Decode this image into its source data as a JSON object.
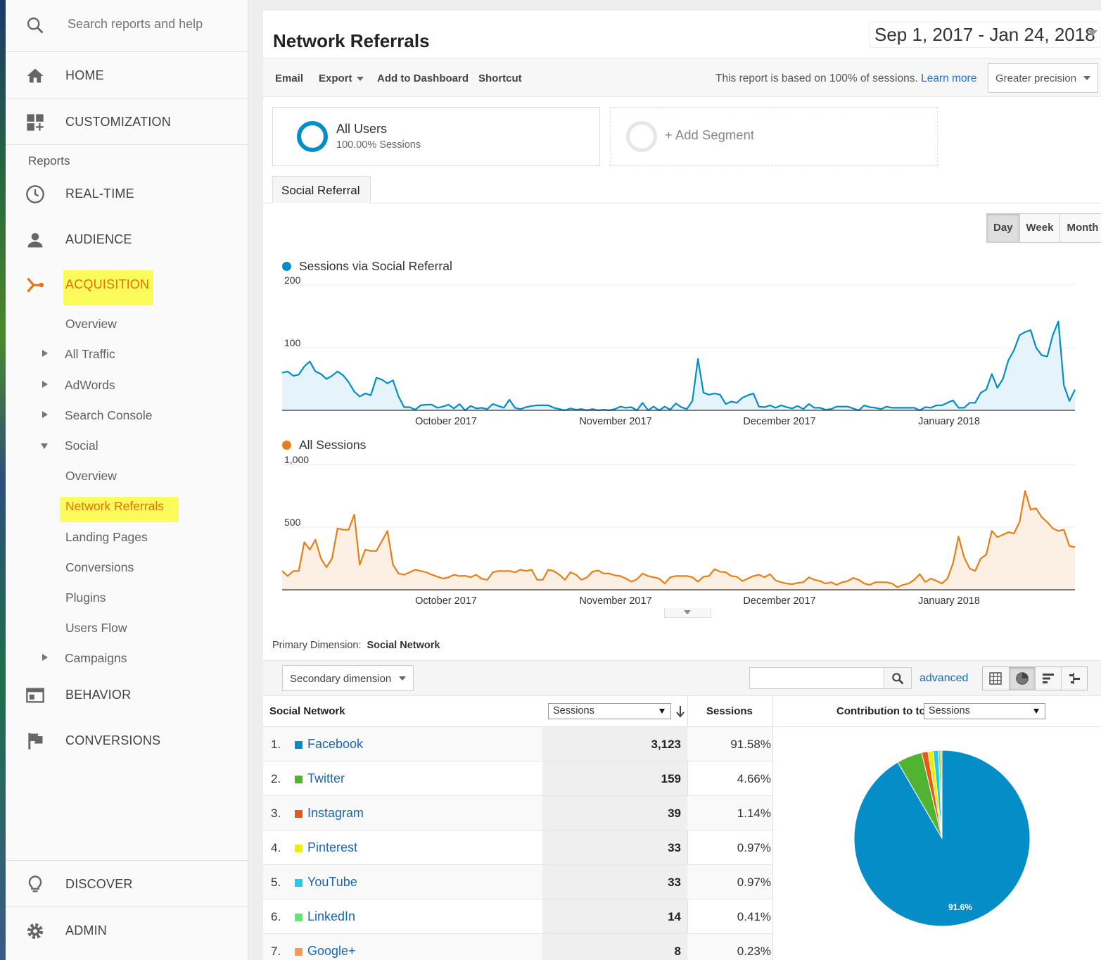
{
  "sidebar": {
    "search_placeholder": "Search reports and help",
    "top_items": [
      {
        "label": "HOME",
        "icon": "home-icon"
      },
      {
        "label": "CUSTOMIZATION",
        "icon": "dashboard-icon"
      }
    ],
    "reports_label": "Reports",
    "sections": [
      {
        "label": "REAL-TIME",
        "icon": "clock-icon"
      },
      {
        "label": "AUDIENCE",
        "icon": "person-icon"
      },
      {
        "label": "ACQUISITION",
        "icon": "acquisition-icon"
      }
    ],
    "acq_items": [
      "Overview",
      "All Traffic",
      "AdWords",
      "Search Console",
      "Social"
    ],
    "social_items": [
      "Overview",
      "Network Referrals",
      "Landing Pages",
      "Conversions",
      "Plugins",
      "Users Flow"
    ],
    "campaigns": "Campaigns",
    "behavior": "BEHAVIOR",
    "conversions": "CONVERSIONS",
    "discover": "DISCOVER",
    "admin": "ADMIN"
  },
  "report": {
    "title": "Network Referrals",
    "date_range": "Sep 1, 2017 - Jan 24, 2018"
  },
  "toolbar": {
    "email": "Email",
    "export": "Export",
    "add_dashboard": "Add to Dashboard",
    "shortcut": "Shortcut",
    "sampling_text": "This report is based on 100% of sessions.",
    "learn_more": "Learn more",
    "precision": "Greater precision"
  },
  "segments": {
    "all_users": "All Users",
    "all_users_sub": "100.00% Sessions",
    "add_segment": "+ Add Segment"
  },
  "tab": "Social Referral",
  "granularity": [
    "Day",
    "Week",
    "Month"
  ],
  "chart_data": [
    {
      "type": "area",
      "series": [
        {
          "name": "Sessions via Social Referral",
          "color": "#058dc7",
          "values": [
            60,
            62,
            55,
            57,
            70,
            78,
            62,
            58,
            50,
            55,
            62,
            56,
            45,
            30,
            22,
            27,
            24,
            52,
            49,
            43,
            48,
            22,
            5,
            5,
            1,
            8,
            9,
            9,
            4,
            6,
            9,
            3,
            10,
            0,
            7,
            3,
            4,
            2,
            10,
            7,
            4,
            17,
            4,
            2,
            5,
            7,
            8,
            8,
            8,
            4,
            2,
            0,
            3,
            1,
            2,
            0,
            2,
            0,
            1,
            0,
            2,
            6,
            4,
            5,
            0,
            12,
            0,
            6,
            0,
            6,
            1,
            11,
            5,
            2,
            15,
            82,
            28,
            25,
            27,
            25,
            10,
            14,
            12,
            20,
            24,
            27,
            6,
            5,
            8,
            4,
            8,
            5,
            3,
            7,
            2,
            10,
            4,
            4,
            1,
            2,
            6,
            6,
            6,
            3,
            0,
            8,
            5,
            4,
            2,
            6,
            4,
            4,
            4,
            4,
            4,
            0,
            5,
            4,
            8,
            8,
            12,
            16,
            4,
            4,
            12,
            12,
            28,
            33,
            58,
            36,
            50,
            80,
            96,
            120,
            125,
            128,
            100,
            88,
            86,
            120,
            142,
            40,
            15,
            33
          ]
        }
      ],
      "x_ticks": [
        "October 2017",
        "November 2017",
        "December 2017",
        "January 2018"
      ],
      "y_ticks": [
        "100",
        "200"
      ],
      "ylim": [
        0,
        200
      ]
    },
    {
      "type": "area",
      "series": [
        {
          "name": "All Sessions",
          "color": "#e67f17",
          "values": [
            150,
            110,
            150,
            150,
            380,
            320,
            400,
            250,
            180,
            250,
            490,
            480,
            480,
            600,
            200,
            320,
            310,
            310,
            390,
            470,
            200,
            130,
            120,
            140,
            160,
            150,
            140,
            120,
            105,
            90,
            100,
            120,
            110,
            112,
            100,
            120,
            88,
            80,
            140,
            150,
            150,
            150,
            140,
            160,
            150,
            160,
            80,
            80,
            160,
            150,
            120,
            80,
            140,
            120,
            80,
            100,
            145,
            155,
            130,
            130,
            115,
            110,
            90,
            65,
            85,
            130,
            110,
            100,
            90,
            50,
            100,
            110,
            110,
            110,
            100,
            65,
            105,
            110,
            165,
            145,
            140,
            110,
            105,
            70,
            90,
            110,
            120,
            100,
            125,
            75,
            60,
            50,
            45,
            55,
            60,
            100,
            80,
            70,
            50,
            60,
            40,
            60,
            70,
            95,
            80,
            50,
            40,
            60,
            60,
            60,
            50,
            20,
            40,
            50,
            80,
            125,
            62,
            90,
            72,
            50,
            90,
            210,
            425,
            260,
            170,
            150,
            250,
            280,
            470,
            420,
            440,
            460,
            450,
            540,
            790,
            640,
            650,
            580,
            540,
            490,
            470,
            480,
            350,
            340
          ]
        }
      ],
      "x_ticks": [
        "October 2017",
        "November 2017",
        "December 2017",
        "January 2018"
      ],
      "y_ticks": [
        "500",
        "1,000"
      ],
      "ylim": [
        0,
        1000
      ]
    },
    {
      "type": "pie",
      "slices": [
        {
          "label": "Facebook",
          "value": 91.58,
          "color": "#058dc7"
        },
        {
          "label": "Twitter",
          "value": 4.66,
          "color": "#50b432"
        },
        {
          "label": "Instagram",
          "value": 1.14,
          "color": "#ed561b"
        },
        {
          "label": "Pinterest",
          "value": 0.97,
          "color": "#edef00"
        },
        {
          "label": "YouTube",
          "value": 0.97,
          "color": "#24cbe5"
        },
        {
          "label": "LinkedIn",
          "value": 0.41,
          "color": "#64e572"
        },
        {
          "label": "Google+",
          "value": 0.23,
          "color": "#ff9655"
        }
      ],
      "data_label": "91.6%"
    }
  ],
  "table": {
    "primary_dim_label": "Primary Dimension:",
    "primary_dim_value": "Social Network",
    "secondary_dim": "Secondary dimension",
    "advanced": "advanced",
    "col_network": "Social Network",
    "col_sessions_select": "Sessions",
    "col_sessions": "Sessions",
    "contribution_label": "Contribution to total:",
    "contribution_select": "Sessions",
    "rows": [
      {
        "num": "1.",
        "name": "Facebook",
        "sessions": "3,123",
        "pct": "91.58%",
        "color": "#058dc7"
      },
      {
        "num": "2.",
        "name": "Twitter",
        "sessions": "159",
        "pct": "4.66%",
        "color": "#50b432"
      },
      {
        "num": "3.",
        "name": "Instagram",
        "sessions": "39",
        "pct": "1.14%",
        "color": "#ed561b"
      },
      {
        "num": "4.",
        "name": "Pinterest",
        "sessions": "33",
        "pct": "0.97%",
        "color": "#edef00"
      },
      {
        "num": "5.",
        "name": "YouTube",
        "sessions": "33",
        "pct": "0.97%",
        "color": "#24cbe5"
      },
      {
        "num": "6.",
        "name": "LinkedIn",
        "sessions": "14",
        "pct": "0.41%",
        "color": "#64e572"
      },
      {
        "num": "7.",
        "name": "Google+",
        "sessions": "8",
        "pct": "0.23%",
        "color": "#ff9655"
      }
    ]
  }
}
